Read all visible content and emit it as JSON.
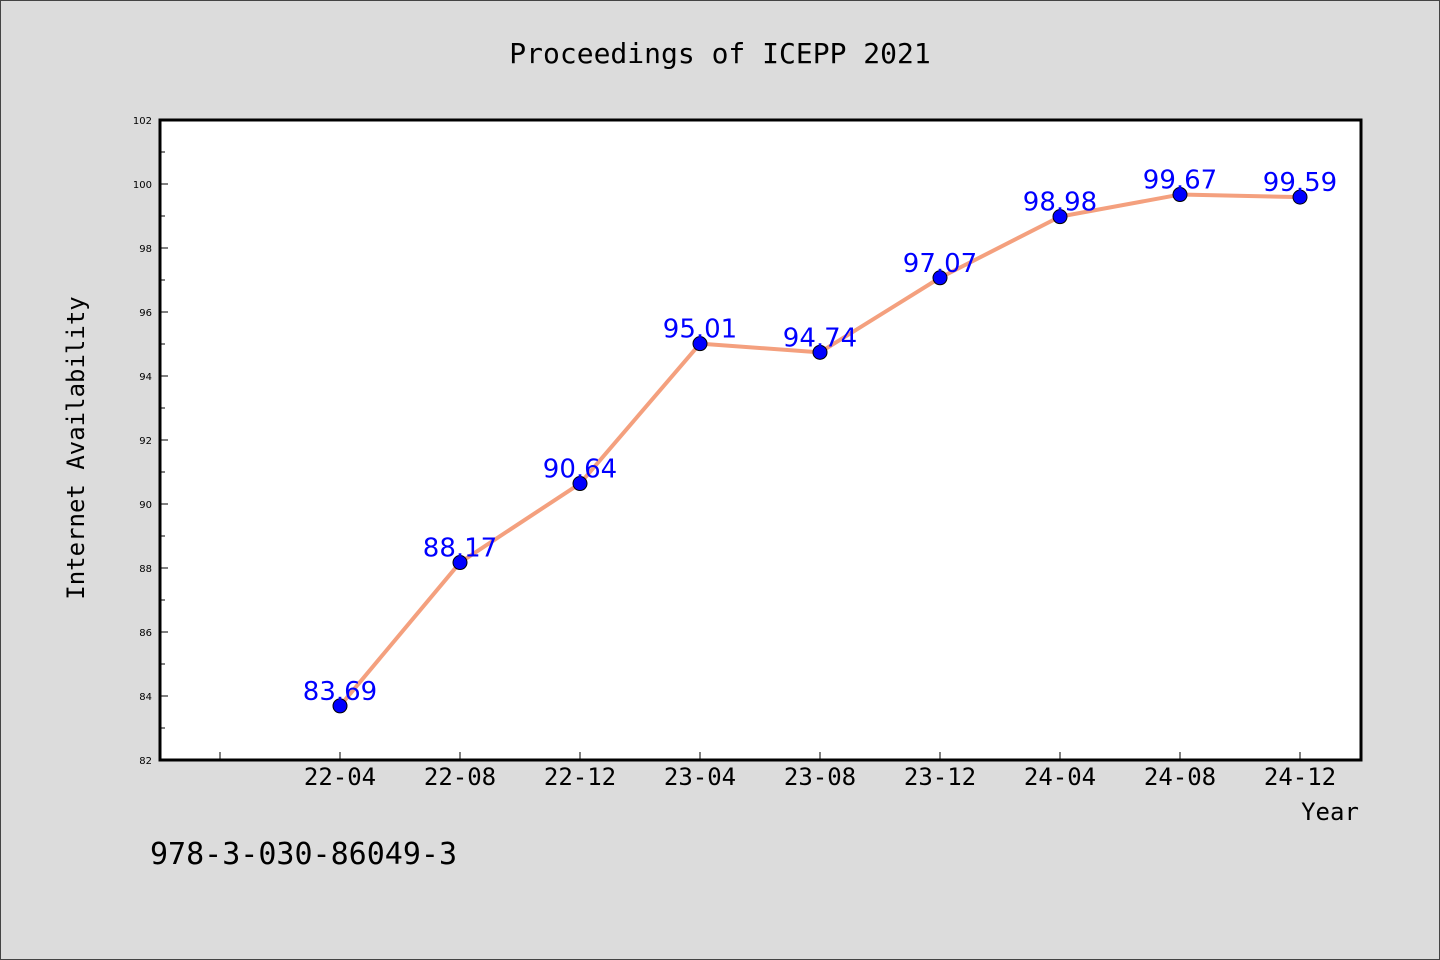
{
  "chart_data": {
    "type": "line",
    "title": "Proceedings of ICEPP 2021",
    "xlabel": "Year",
    "ylabel": "Internet Availability",
    "categories": [
      "22-04",
      "22-08",
      "22-12",
      "23-04",
      "23-08",
      "23-12",
      "24-04",
      "24-08",
      "24-12"
    ],
    "values": [
      83.69,
      88.17,
      90.64,
      95.01,
      94.74,
      97.07,
      98.98,
      99.67,
      99.59
    ],
    "ylim": [
      82,
      102
    ],
    "yticks": [
      82,
      84,
      86,
      88,
      90,
      92,
      94,
      96,
      98,
      100,
      102
    ],
    "line_color": "#f4a07e",
    "marker_color": "#0000ff",
    "label_color": "#0000ff",
    "grid": false
  },
  "footer": {
    "isbn": "978-3-030-86049-3"
  }
}
